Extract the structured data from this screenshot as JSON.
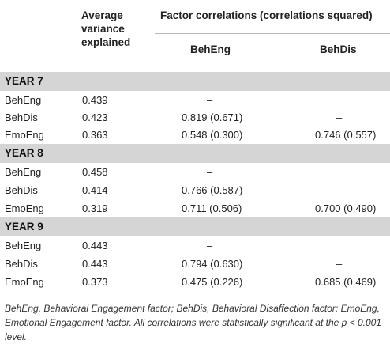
{
  "header": {
    "ave_label": "Average variance explained",
    "factor_corr_label": "Factor correlations (correlations squared)",
    "sub_beheng": "BehEng",
    "sub_behdis": "BehDis"
  },
  "years": [
    {
      "label": "YEAR 7",
      "rows": [
        {
          "name": "BehEng",
          "ave": "0.439",
          "beheng": "–",
          "behdis": ""
        },
        {
          "name": "BehDis",
          "ave": "0.423",
          "beheng": "0.819 (0.671)",
          "behdis": "–"
        },
        {
          "name": "EmoEng",
          "ave": "0.363",
          "beheng": "0.548 (0.300)",
          "behdis": "0.746 (0.557)"
        }
      ]
    },
    {
      "label": "YEAR 8",
      "rows": [
        {
          "name": "BehEng",
          "ave": "0.458",
          "beheng": "–",
          "behdis": ""
        },
        {
          "name": "BehDis",
          "ave": "0.414",
          "beheng": "0.766 (0.587)",
          "behdis": "–"
        },
        {
          "name": "EmoEng",
          "ave": "0.319",
          "beheng": "0.711 (0.506)",
          "behdis": "0.700 (0.490)"
        }
      ]
    },
    {
      "label": "YEAR 9",
      "rows": [
        {
          "name": "BehEng",
          "ave": "0.443",
          "beheng": "–",
          "behdis": ""
        },
        {
          "name": "BehDis",
          "ave": "0.443",
          "beheng": "0.794 (0.630)",
          "behdis": "–"
        },
        {
          "name": "EmoEng",
          "ave": "0.373",
          "beheng": "0.475 (0.226)",
          "behdis": "0.685 (0.469)"
        }
      ]
    }
  ],
  "footnote": "BehEng, Behavioral Engagement factor; BehDis, Behavioral Disaffection factor; EmoEng, Emotional Engagement factor. All correlations were statistically significant at the p < 0.001 level."
}
